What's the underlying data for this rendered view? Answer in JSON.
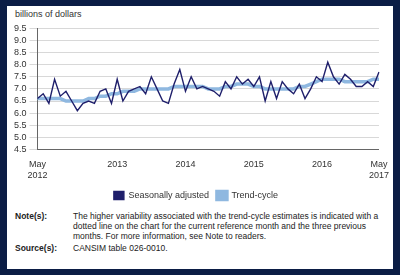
{
  "chart_data": {
    "type": "line",
    "y_label": "billions of dollars",
    "categories": [
      "May 2012",
      null,
      null,
      null,
      null,
      null,
      null,
      null,
      null,
      null,
      null,
      null,
      null,
      null,
      "2013",
      null,
      null,
      null,
      null,
      null,
      null,
      null,
      null,
      null,
      null,
      null,
      "2014",
      null,
      null,
      null,
      null,
      null,
      null,
      null,
      null,
      null,
      null,
      null,
      "2015",
      null,
      null,
      null,
      null,
      null,
      null,
      null,
      null,
      null,
      null,
      null,
      "2016",
      null,
      null,
      null,
      null,
      null,
      null,
      null,
      null,
      null,
      "May 2017"
    ],
    "series": [
      {
        "name": "Seasonally adjusted",
        "color": "#1f1f6b",
        "values": [
          6.6,
          6.8,
          6.4,
          7.4,
          6.7,
          6.9,
          6.5,
          6.1,
          6.4,
          6.5,
          6.4,
          6.9,
          7.0,
          6.4,
          7.4,
          6.5,
          6.9,
          7.0,
          7.1,
          6.8,
          7.5,
          7.0,
          6.5,
          6.4,
          7.2,
          7.8,
          6.9,
          7.5,
          7.0,
          7.1,
          7.0,
          6.9,
          6.7,
          7.3,
          7.0,
          7.5,
          7.2,
          7.4,
          7.1,
          7.5,
          6.5,
          7.3,
          6.6,
          7.3,
          7.0,
          6.8,
          7.2,
          6.6,
          7.0,
          7.5,
          7.3,
          8.1,
          7.5,
          7.2,
          7.6,
          7.4,
          7.1,
          7.1,
          7.3,
          7.1,
          7.7
        ]
      },
      {
        "name": "Trend-cycle",
        "color": "#8fb8e0",
        "values": [
          6.6,
          6.6,
          6.6,
          6.6,
          6.6,
          6.5,
          6.5,
          6.5,
          6.5,
          6.6,
          6.6,
          6.7,
          6.7,
          6.8,
          6.8,
          6.9,
          6.9,
          6.9,
          7.0,
          7.0,
          7.0,
          7.0,
          7.0,
          7.0,
          7.1,
          7.1,
          7.1,
          7.1,
          7.1,
          7.1,
          7.0,
          7.0,
          7.0,
          7.1,
          7.1,
          7.2,
          7.2,
          7.2,
          7.1,
          7.1,
          7.0,
          7.0,
          7.0,
          7.0,
          7.0,
          7.0,
          7.1,
          7.1,
          7.2,
          7.3,
          7.4,
          7.4,
          7.4,
          7.4,
          7.3,
          7.3,
          7.3,
          7.3,
          7.3,
          7.4,
          7.4
        ]
      }
    ],
    "ylim": [
      4.5,
      9.5
    ],
    "yticks": [
      4.5,
      {
        "value": 5,
        "label": "5.0"
      },
      5.5,
      {
        "value": 6,
        "label": "6.0"
      },
      6.5,
      {
        "value": 7,
        "label": "7.0"
      },
      7.5,
      {
        "value": 8,
        "label": "8.0"
      },
      8.5,
      {
        "value": 9,
        "label": "9.0"
      },
      9.5
    ],
    "grid": true,
    "legend": "bottom"
  },
  "footnotes": [
    {
      "label": "Note(s):",
      "text": "The higher variability associated with the trend-cycle estimates is indicated with a dotted line on the chart for the current reference month and the three previous months. For more information, see Note to readers."
    },
    {
      "label": "Source(s):",
      "text": "CANSIM table 026-0010."
    }
  ]
}
